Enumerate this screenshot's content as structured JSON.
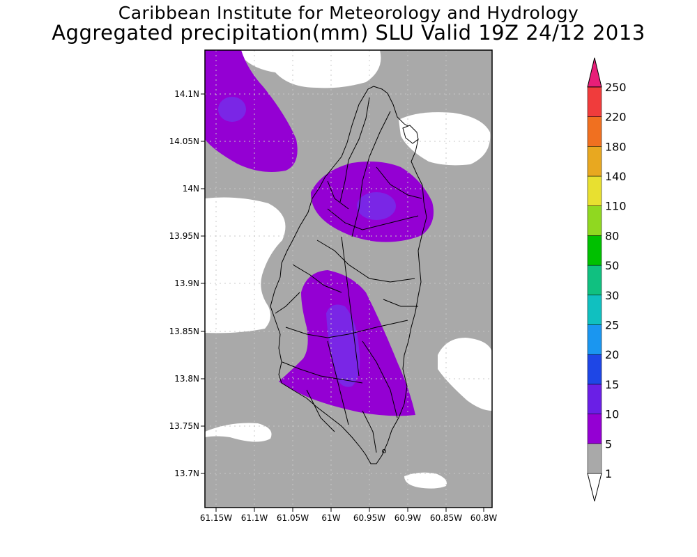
{
  "header": {
    "title_line1": "Caribbean Institute for Meteorology and Hydrology",
    "title_line2": "Aggregated precipitation(mm) SLU Valid 19Z 24/12 2013"
  },
  "map": {
    "lat_labels": [
      "14.1N",
      "14.05N",
      "14N",
      "13.95N",
      "13.9N",
      "13.85N",
      "13.8N",
      "13.75N",
      "13.7N"
    ],
    "lon_labels": [
      "61.15W",
      "61.1W",
      "61.05W",
      "61W",
      "60.95W",
      "60.9W",
      "60.85W",
      "60.8W"
    ],
    "colors": {
      "white": "#ffffff",
      "gray": "#a9a9a9",
      "purple": "#9400d3",
      "indigo": "#7a26e6"
    }
  },
  "colorbar": {
    "levels": [
      {
        "label": "1",
        "color": "#ffffff"
      },
      {
        "label": "5",
        "color": "#a9a9a9"
      },
      {
        "label": "10",
        "color": "#9400d3"
      },
      {
        "label": "15",
        "color": "#6a1fe6"
      },
      {
        "label": "20",
        "color": "#1e46e6"
      },
      {
        "label": "25",
        "color": "#1a96f0"
      },
      {
        "label": "30",
        "color": "#10c0c0"
      },
      {
        "label": "50",
        "color": "#10c080"
      },
      {
        "label": "80",
        "color": "#00c000"
      },
      {
        "label": "110",
        "color": "#90d820"
      },
      {
        "label": "140",
        "color": "#e8e030"
      },
      {
        "label": "180",
        "color": "#e8a820"
      },
      {
        "label": "220",
        "color": "#f07020"
      },
      {
        "label": "250",
        "color": "#f03c3c"
      }
    ],
    "top_color": "#e81e78"
  }
}
